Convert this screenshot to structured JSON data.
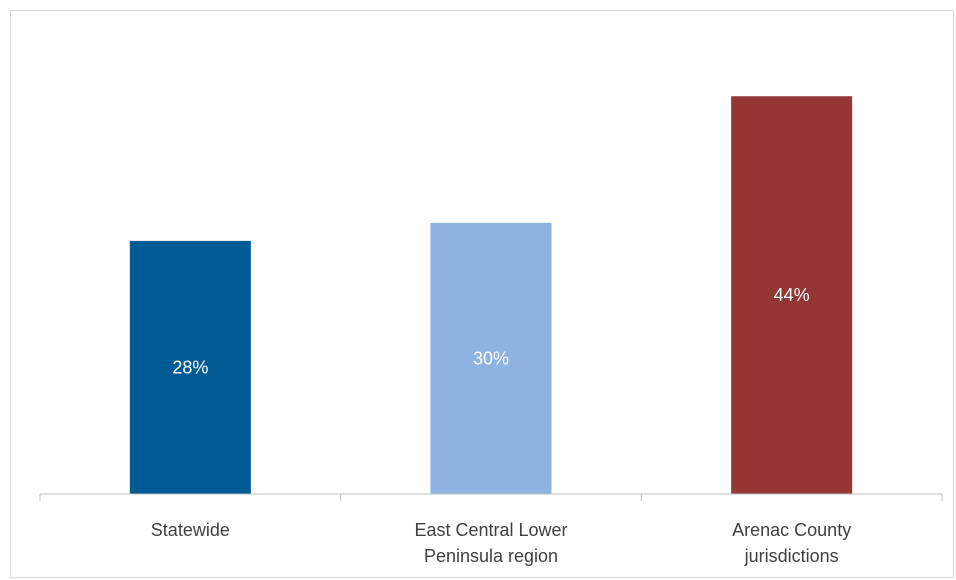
{
  "chart_data": {
    "type": "bar",
    "categories": [
      [
        "Statewide"
      ],
      [
        "East Central Lower",
        "Peninsula region"
      ],
      [
        "Arenac County",
        "jurisdictions"
      ]
    ],
    "values": [
      28,
      30,
      44
    ],
    "data_labels": [
      "28%",
      "30%",
      "44%"
    ],
    "colors": [
      "#005a94",
      "#8db3e2",
      "#943634"
    ],
    "title": "",
    "xlabel": "",
    "ylabel": "",
    "ylim": [
      0,
      50
    ],
    "grid": false,
    "legend": "none"
  }
}
